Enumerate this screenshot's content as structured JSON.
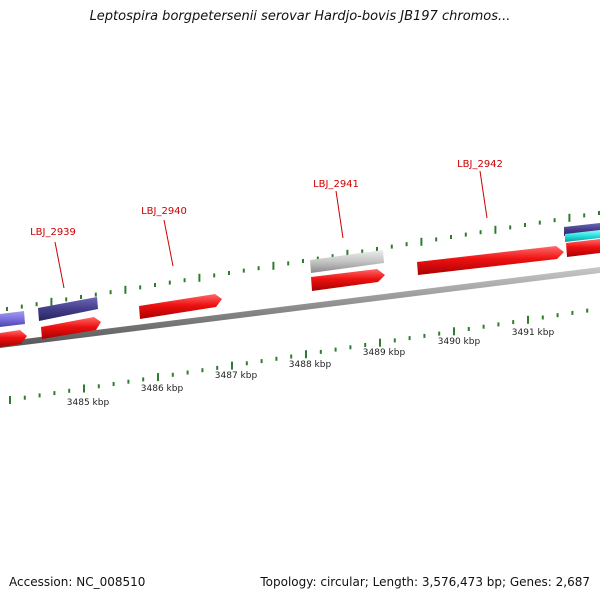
{
  "title": "Leptospira borgpetersenii serovar Hardjo-bovis JB197 chromos...",
  "footer": {
    "accession": "Accession: NC_008510",
    "summary": "Topology: circular; Length: 3,576,473 bp; Genes: 2,687"
  },
  "genes": [
    {
      "id": "LBJ_2939",
      "label": "LBJ_2939"
    },
    {
      "id": "LBJ_2940",
      "label": "LBJ_2940"
    },
    {
      "id": "LBJ_2941",
      "label": "LBJ_2941"
    },
    {
      "id": "LBJ_2942",
      "label": "LBJ_2942"
    }
  ],
  "scale_labels": [
    "3485 kbp",
    "3486 kbp",
    "3487 kbp",
    "3488 kbp",
    "3489 kbp",
    "3490 kbp",
    "3491 kbp"
  ],
  "colors": {
    "gene_label": "#cc0000",
    "gene_forward": "#ee1111",
    "gene_gray": "#c4c4c4",
    "gene_purple": "#443e8a",
    "gene_lavender": "#7b70dd",
    "gene_cyan": "#22e0e0",
    "backbone": "#888888",
    "tick": "#2e7d2e"
  }
}
